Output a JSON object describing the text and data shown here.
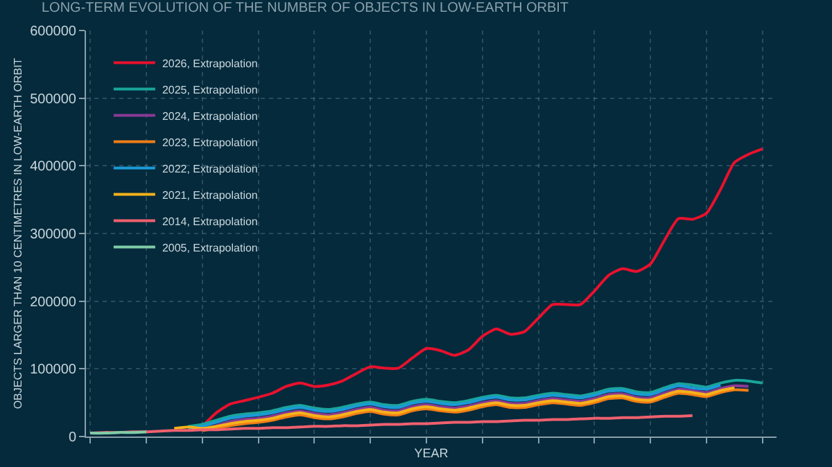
{
  "chart_data": {
    "type": "line",
    "title": "LONG-TERM EVOLUTION OF THE NUMBER OF OBJECTS IN LOW-EARTH ORBIT",
    "xlabel": "YEAR",
    "ylabel": "OBJECTS LARGER THAN 10 CENTIMETRES IN LOW-EARTH ORBIT",
    "categories": [
      null,
      null,
      null,
      null,
      null,
      null,
      null,
      null,
      null,
      null,
      null,
      null,
      null,
      null,
      null,
      null,
      null,
      null,
      null,
      null,
      null,
      null,
      null,
      null,
      null,
      null,
      null,
      null,
      null,
      null,
      null,
      null,
      null,
      null,
      null,
      null,
      null,
      null,
      null,
      null,
      null,
      null,
      null,
      null,
      null,
      null,
      null,
      null,
      null
    ],
    "ylim": [
      0,
      600000
    ],
    "yticks": [
      0,
      100000,
      200000,
      300000,
      400000,
      500000,
      600000
    ],
    "grid": true,
    "legend": "top left",
    "marker": "none",
    "line_style": "solid",
    "series": [
      {
        "name": "2026, Extrapolation",
        "color": "#e8112d",
        "values": [
          null,
          null,
          null,
          null,
          null,
          null,
          null,
          null,
          15000,
          35000,
          48000,
          53000,
          58000,
          64000,
          74000,
          79000,
          74000,
          76000,
          82000,
          93000,
          103000,
          101000,
          101000,
          116000,
          130000,
          127000,
          120000,
          128000,
          148000,
          159000,
          151000,
          155000,
          175000,
          195000,
          195000,
          195000,
          215000,
          238000,
          248000,
          244000,
          255000,
          290000,
          322000,
          321000,
          330000,
          365000,
          405000,
          417000,
          425000
        ]
      },
      {
        "name": "2025, Extrapolation",
        "color": "#1aa59a",
        "values": [
          null,
          null,
          null,
          null,
          null,
          null,
          null,
          15000,
          18000,
          24000,
          30000,
          33000,
          35000,
          38000,
          43000,
          46000,
          42000,
          40000,
          43000,
          48000,
          51000,
          47000,
          46000,
          52000,
          55000,
          52000,
          50000,
          53000,
          58000,
          61000,
          57000,
          57000,
          61000,
          64000,
          62000,
          60000,
          64000,
          70000,
          71000,
          66000,
          65000,
          72000,
          78000,
          76000,
          73000,
          79000,
          83000,
          82000,
          79000
        ]
      },
      {
        "name": "2024, Extrapolation",
        "color": "#8a3a96",
        "values": [
          null,
          null,
          null,
          null,
          null,
          null,
          null,
          null,
          10000,
          16000,
          22000,
          25000,
          27000,
          30000,
          35000,
          38000,
          34000,
          32000,
          35000,
          40000,
          43000,
          39000,
          38000,
          44000,
          47000,
          44000,
          42000,
          45000,
          50000,
          53000,
          49000,
          49000,
          53000,
          56000,
          54000,
          52000,
          56000,
          62000,
          63000,
          58000,
          57000,
          64000,
          70000,
          68000,
          65000,
          71000,
          75000,
          74000,
          null
        ]
      },
      {
        "name": "2023, Extrapolation",
        "color": "#f07d16",
        "values": [
          null,
          null,
          null,
          null,
          null,
          null,
          null,
          null,
          9000,
          12000,
          16000,
          19000,
          21000,
          24000,
          29000,
          32000,
          28000,
          26000,
          29000,
          34000,
          37000,
          33000,
          32000,
          38000,
          41000,
          38000,
          36000,
          39000,
          44000,
          47000,
          43000,
          43000,
          47000,
          50000,
          48000,
          46000,
          50000,
          56000,
          57000,
          52000,
          51000,
          58000,
          64000,
          62000,
          59000,
          65000,
          69000,
          68000,
          null
        ]
      },
      {
        "name": "2022, Extrapolation",
        "color": "#1b9ad6",
        "values": [
          null,
          null,
          null,
          null,
          null,
          null,
          null,
          12000,
          15000,
          21000,
          27000,
          30000,
          32000,
          35000,
          40000,
          43000,
          39000,
          37000,
          40000,
          45000,
          48000,
          44000,
          43000,
          49000,
          52000,
          49000,
          47000,
          50000,
          55000,
          58000,
          54000,
          54000,
          58000,
          61000,
          59000,
          57000,
          61000,
          67000,
          68000,
          63000,
          62000,
          69000,
          75000,
          72000,
          70000,
          76000,
          null,
          null,
          null
        ]
      },
      {
        "name": "2021, Extrapolation",
        "color": "#f6b21a",
        "values": [
          null,
          null,
          null,
          null,
          null,
          null,
          12000,
          14000,
          12000,
          15000,
          19000,
          22000,
          24000,
          27000,
          32000,
          35000,
          31000,
          29000,
          32000,
          37000,
          40000,
          36000,
          35000,
          41000,
          44000,
          41000,
          39000,
          42000,
          47000,
          50000,
          46000,
          46000,
          50000,
          53000,
          51000,
          49000,
          53000,
          59000,
          60000,
          55000,
          54000,
          61000,
          67000,
          65000,
          62000,
          68000,
          72000,
          null,
          null
        ]
      },
      {
        "name": "2014, Extrapolation",
        "color": "#f0606e",
        "values": [
          5000,
          6000,
          6000,
          7000,
          7000,
          8000,
          9000,
          9000,
          10000,
          10000,
          11000,
          12000,
          12000,
          13000,
          13000,
          14000,
          15000,
          15000,
          16000,
          16000,
          17000,
          18000,
          18000,
          19000,
          19000,
          20000,
          21000,
          21000,
          22000,
          22000,
          23000,
          24000,
          24000,
          25000,
          25000,
          26000,
          27000,
          27000,
          28000,
          28000,
          29000,
          30000,
          30000,
          31000,
          null,
          null,
          null,
          null,
          null
        ]
      },
      {
        "name": "2005, Extrapolation",
        "color": "#7fcca6",
        "values": [
          5000,
          5000,
          6000,
          6000,
          7000,
          null,
          null,
          null,
          null,
          null,
          null,
          null,
          null,
          null,
          null,
          null,
          null,
          null,
          null,
          null,
          null,
          null,
          null,
          null,
          null,
          null,
          null,
          null,
          null,
          null,
          null,
          null,
          null,
          null,
          null,
          null,
          null,
          null,
          null,
          null,
          null,
          null,
          null,
          null,
          null,
          null,
          null,
          null,
          null
        ]
      }
    ]
  }
}
